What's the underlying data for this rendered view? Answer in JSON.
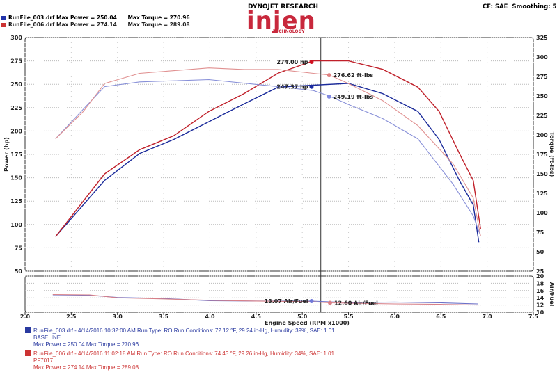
{
  "header": {
    "runs": [
      {
        "label": "RunFile_003.drf Max Power = 250.04",
        "torque": "Max Torque = 270.96",
        "color": "#2233aa"
      },
      {
        "label": "RunFile_006.drf Max Power = 274.14",
        "torque": "Max Torque = 289.08",
        "color": "#cc3333"
      }
    ],
    "logo_top": "DYNOJET RESEARCH",
    "logo_main": "injen",
    "logo_sub": "TECHNOLOGY",
    "settings": "CF: SAE  Smoothing: 5"
  },
  "chart_data": {
    "type": "line",
    "xlabel": "Engine Speed (RPM x1000)",
    "ylabel": "Power (hp)",
    "y2label": "Torque (ft-lbs)",
    "afr_label": "Air/Fuel",
    "xlim": [
      2.0,
      7.5
    ],
    "ylim": [
      50,
      300
    ],
    "y2lim": [
      25,
      325
    ],
    "afrlim": [
      10,
      20
    ],
    "x_ticks": [
      "2.0",
      "2.5",
      "3.0",
      "3.5",
      "4.0",
      "4.5",
      "5.0",
      "5.5",
      "6.0",
      "6.5",
      "7.0",
      "7.5"
    ],
    "y_ticks": [
      "50",
      "75",
      "100",
      "125",
      "150",
      "175",
      "200",
      "225",
      "250",
      "275",
      "300"
    ],
    "y2_ticks": [
      "25",
      "50",
      "75",
      "100",
      "125",
      "150",
      "175",
      "200",
      "225",
      "250",
      "275",
      "300",
      "325"
    ],
    "afr_ticks": [
      "10",
      "12",
      "14",
      "16",
      "18",
      "20"
    ],
    "grid": true,
    "cursor_rpm": 5.2,
    "series": [
      {
        "name": "RunFile_003.drf",
        "kind": "power",
        "color": "#1a2a9a",
        "x": [
          2.33,
          2.86,
          3.24,
          3.61,
          3.99,
          4.37,
          4.74,
          5.12,
          5.5,
          5.87,
          6.25,
          6.48,
          6.7,
          6.85,
          6.91
        ],
        "y": [
          87,
          147,
          176,
          191,
          210,
          229,
          247,
          249,
          251,
          240,
          221,
          191,
          147,
          121,
          81
        ]
      },
      {
        "name": "RunFile_006.drf",
        "kind": "power",
        "color": "#c0202a",
        "x": [
          2.33,
          2.86,
          3.24,
          3.61,
          3.99,
          4.37,
          4.74,
          5.12,
          5.5,
          5.87,
          6.25,
          6.48,
          6.7,
          6.85,
          6.93
        ],
        "y": [
          87,
          154,
          180,
          195,
          221,
          240,
          262,
          275,
          275,
          266,
          247,
          221,
          176,
          147,
          95
        ]
      },
      {
        "name": "RunFile_003.drf",
        "kind": "torque",
        "color": "#8890d8",
        "x": [
          2.33,
          2.86,
          3.24,
          3.99,
          4.74,
          5.12,
          5.29,
          5.5,
          5.87,
          6.25,
          6.63,
          6.85,
          6.93
        ],
        "y": [
          195,
          262,
          268,
          271,
          262,
          257,
          250,
          239,
          221,
          195,
          137,
          96,
          70
        ]
      },
      {
        "name": "RunFile_006.drf",
        "kind": "torque",
        "color": "#e09090",
        "x": [
          2.33,
          2.63,
          2.86,
          3.24,
          3.99,
          4.37,
          4.74,
          5.12,
          5.29,
          5.5,
          5.87,
          6.25,
          6.63,
          6.85,
          6.93
        ],
        "y": [
          195,
          230,
          266,
          279,
          286,
          284,
          284,
          279,
          277,
          266,
          244,
          212,
          163,
          119,
          70
        ]
      },
      {
        "name": "RunFile_003.drf",
        "kind": "afr",
        "color": "#6a70c8",
        "x": [
          2.3,
          2.7,
          3.0,
          3.5,
          4.0,
          4.5,
          5.1,
          5.5,
          6.0,
          6.5,
          6.9
        ],
        "y": [
          14.8,
          14.7,
          14.1,
          13.8,
          13.2,
          13.1,
          13.07,
          12.7,
          12.8,
          12.6,
          12.3
        ]
      },
      {
        "name": "RunFile_006.drf",
        "kind": "afr",
        "color": "#d88088",
        "x": [
          2.3,
          2.7,
          3.0,
          3.5,
          4.0,
          4.5,
          5.1,
          5.3,
          6.0,
          6.5,
          6.9
        ],
        "y": [
          14.9,
          14.8,
          14.0,
          13.7,
          13.3,
          13.1,
          12.9,
          12.6,
          12.3,
          12.2,
          12.0
        ]
      }
    ],
    "annotations": [
      {
        "text": "274.00 hp",
        "x": 5.1,
        "y": 274.0,
        "axis": "power",
        "color": "#d01020"
      },
      {
        "text": "247.37 hp",
        "x": 5.1,
        "y": 247.37,
        "axis": "power",
        "color": "#1a2aa0"
      },
      {
        "text": "276.62 ft-lbs",
        "x": 5.29,
        "y": 276.62,
        "axis": "torque",
        "color": "#e08080"
      },
      {
        "text": "249.19 ft-lbs",
        "x": 5.29,
        "y": 249.19,
        "axis": "torque",
        "color": "#8088e0"
      },
      {
        "text": "13.07 Air/Fuel",
        "x": 5.1,
        "y": 13.07,
        "axis": "afr",
        "color": "#7078d8"
      },
      {
        "text": "12.60 Air/Fuel",
        "x": 5.3,
        "y": 12.6,
        "axis": "afr",
        "color": "#d88088"
      }
    ]
  },
  "footer": {
    "runs": [
      {
        "line1": "RunFile_003.drf - 4/14/2016 10:32:00 AM  Run Type: RO  Run Conditions: 72.12 °F, 29.24 in-Hg,  Humidity: 39%, SAE: 1.01",
        "line2": "BASELINE",
        "line3": "Max Power = 250.04  Max Torque = 270.96",
        "color": "#2a3aa0"
      },
      {
        "line1": "RunFile_006.drf - 4/14/2016 11:02:18 AM  Run Type: RO  Run Conditions: 74.43 °F, 29.26 in-Hg,  Humidity: 34%, SAE: 1.01",
        "line2": "PF7017",
        "line3": "Max Power = 274.14  Max Torque = 289.08",
        "color": "#cc3333"
      }
    ]
  }
}
